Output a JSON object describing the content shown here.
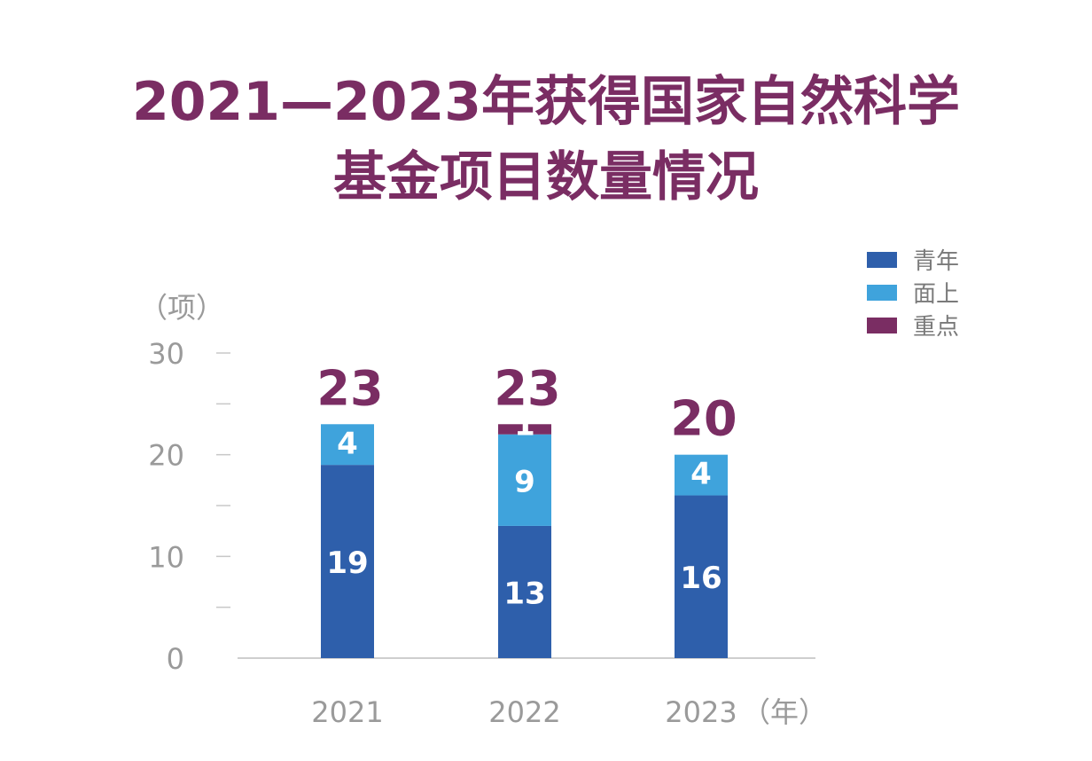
{
  "title_line1": "2021—2023年获得国家自然科学",
  "title_line2": "基金项目数量情况",
  "y_unit": "（项）",
  "x_unit": "（年）",
  "chart_data": {
    "type": "bar",
    "stacked": true,
    "categories": [
      "2021",
      "2022",
      "2023"
    ],
    "series": [
      {
        "name": "青年",
        "color": "#2e5fab",
        "values": [
          19,
          13,
          16
        ]
      },
      {
        "name": "面上",
        "color": "#3fa3dc",
        "values": [
          4,
          9,
          4
        ]
      },
      {
        "name": "重点",
        "color": "#7a2d63",
        "values": [
          0,
          1,
          0
        ]
      }
    ],
    "segment_labels": [
      [
        "19",
        "4",
        null
      ],
      [
        "13",
        "9",
        "1"
      ],
      [
        "16",
        "4",
        null
      ]
    ],
    "totals": [
      "23",
      "23",
      "20"
    ],
    "ylim": [
      0,
      30
    ],
    "yticks": [
      "0",
      "10",
      "20",
      "30"
    ],
    "minor_ticks": [
      5,
      15,
      25
    ],
    "grid": false,
    "legend": "top-right"
  }
}
